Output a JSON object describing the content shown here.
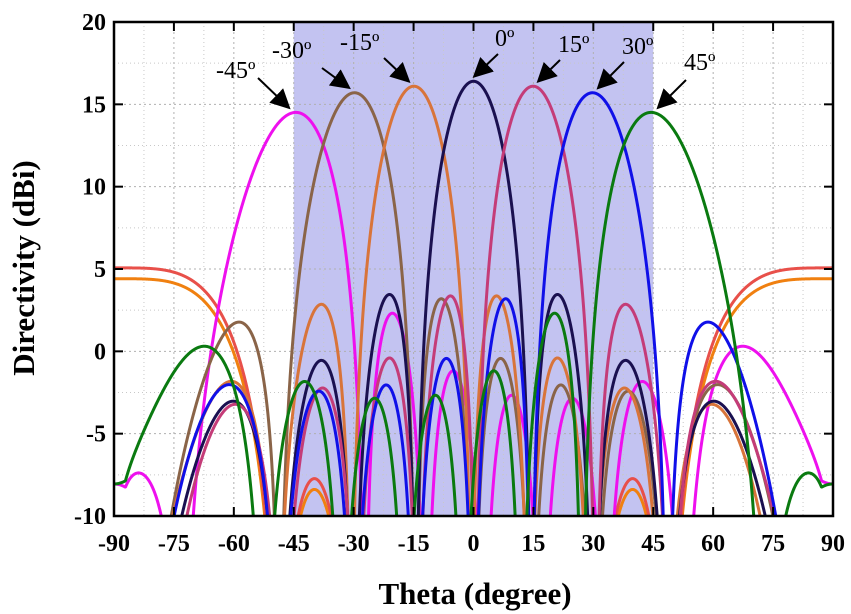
{
  "chart_data": {
    "type": "line",
    "xlabel": "Theta (degree)",
    "ylabel": "Directivity (dBi)",
    "xlim": [
      -90,
      90
    ],
    "ylim": [
      -10,
      20
    ],
    "grid": true,
    "x_ticks": [
      -90,
      -75,
      -60,
      -45,
      -30,
      -15,
      0,
      15,
      30,
      45,
      60,
      75,
      90
    ],
    "y_ticks": [
      -10,
      -5,
      0,
      5,
      10,
      15,
      20
    ],
    "x_tick_labels": [
      "-90",
      "-75",
      "-60",
      "-45",
      "-30",
      "-15",
      "0",
      "15",
      "30",
      "45",
      "60",
      "75",
      "90"
    ],
    "y_tick_labels": [
      "-10",
      "-5",
      "0",
      "5",
      "10",
      "15",
      "20"
    ],
    "scan_region": {
      "x_from": -45,
      "x_to": 45,
      "color": "#b8b8ee"
    },
    "colors": {
      "0": "#1a1050",
      "15": "#c43c78",
      "30": "#1010e8",
      "45": "#0a7a10",
      "-15": "#d8743a",
      "-30": "#8a6448",
      "-45": "#ee10ee"
    },
    "edge_curves_colors": [
      "#f08010",
      "#e8504a"
    ],
    "series": [
      {
        "steer": -45,
        "peak": 14.5,
        "color": "#ee10ee"
      },
      {
        "steer": -30,
        "peak": 15.7,
        "color": "#8a6448"
      },
      {
        "steer": -15,
        "peak": 16.1,
        "color": "#d8743a"
      },
      {
        "steer": 0,
        "peak": 16.4,
        "color": "#1a1050"
      },
      {
        "steer": 15,
        "peak": 16.1,
        "color": "#c43c78"
      },
      {
        "steer": 30,
        "peak": 15.7,
        "color": "#1010e8"
      },
      {
        "steer": 45,
        "peak": 14.5,
        "color": "#0a7a10"
      }
    ],
    "annotations": [
      {
        "label": "-45º",
        "x": -45,
        "y": 14.5
      },
      {
        "label": "-30º",
        "x": -30,
        "y": 15.7
      },
      {
        "label": "-15º",
        "x": -15,
        "y": 16.1
      },
      {
        "label": "0º",
        "x": 0,
        "y": 16.4
      },
      {
        "label": "15º",
        "x": 15,
        "y": 16.1
      },
      {
        "label": "30º",
        "x": 30,
        "y": 15.7
      },
      {
        "label": "45º",
        "x": 45,
        "y": 14.5
      }
    ]
  }
}
